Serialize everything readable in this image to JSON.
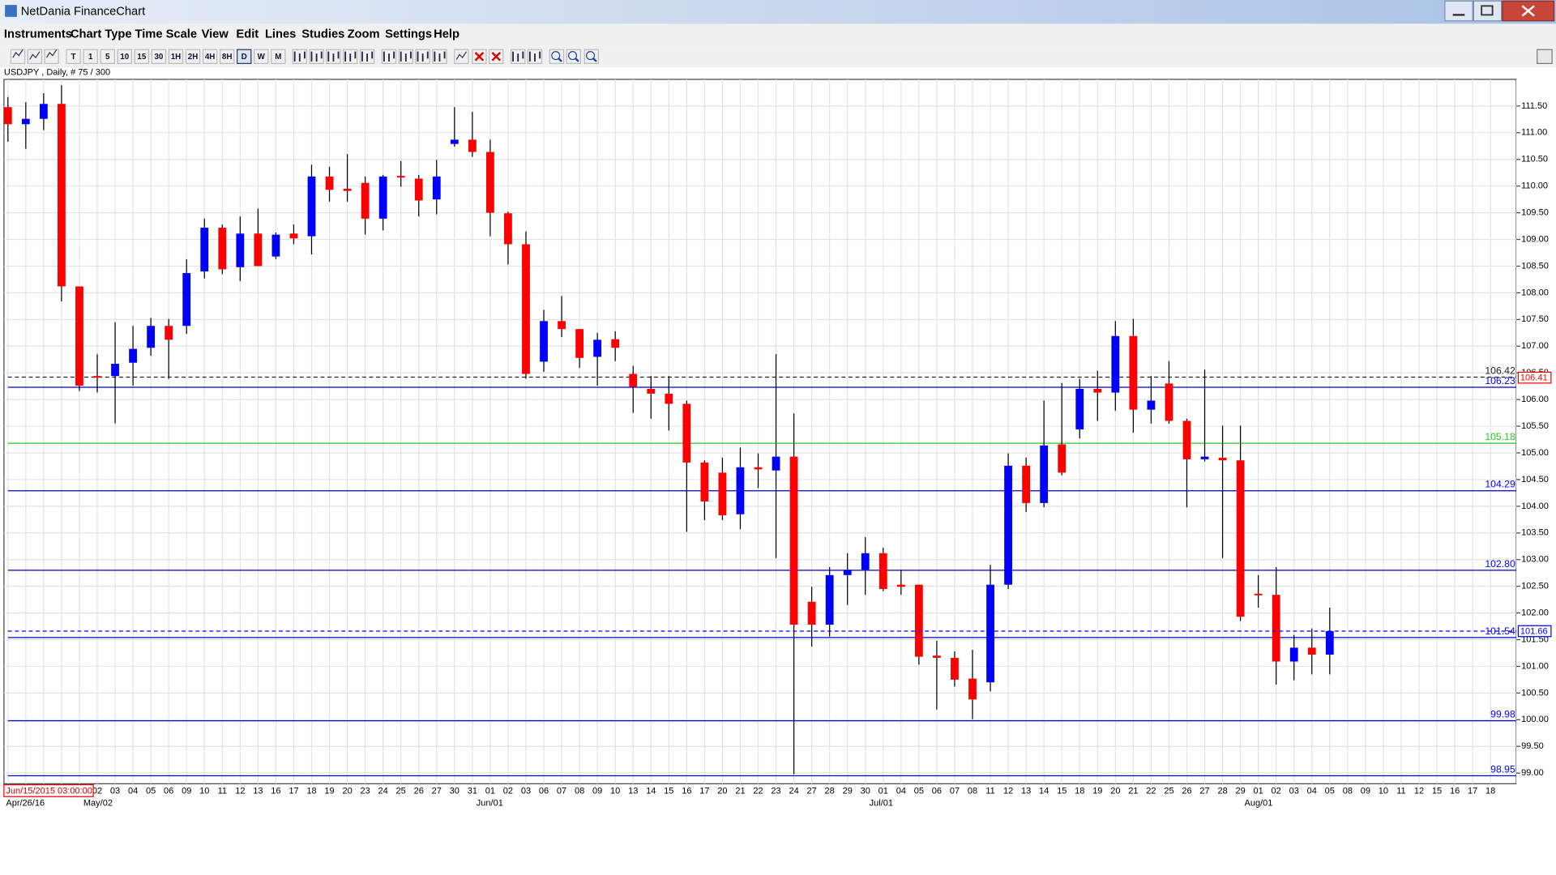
{
  "window": {
    "title": "NetDania FinanceChart"
  },
  "menu": [
    "Instruments",
    "Chart Type",
    "Time Scale",
    "View",
    "Edit",
    "Lines",
    "Studies",
    "Zoom",
    "Settings",
    "Help"
  ],
  "toolbar": {
    "timeframes": [
      "T",
      "1",
      "5",
      "10",
      "15",
      "30",
      "1H",
      "2H",
      "4H",
      "8H",
      "D",
      "W",
      "M"
    ]
  },
  "info": "USDJPY , Daily, # 75 / 300",
  "cursor_date": "Jun/15/2015 03:00:00",
  "chart_data": {
    "type": "candlestick",
    "categories": [
      null,
      null,
      null,
      null,
      null,
      "02",
      "03",
      "04",
      "05",
      "06",
      "09",
      "10",
      "11",
      "12",
      "13",
      "16",
      "17",
      "18",
      "19",
      "20",
      "23",
      "24",
      "25",
      "26",
      "27",
      "30",
      "31",
      "01",
      "02",
      "03",
      "06",
      "07",
      "08",
      "09",
      "10",
      "13",
      "14",
      "15",
      "16",
      "17",
      "20",
      "21",
      "22",
      "23",
      "24",
      "27",
      "28",
      "29",
      "30",
      "01",
      "04",
      "05",
      "06",
      "07",
      "08",
      "11",
      "12",
      "13",
      "14",
      "15",
      "18",
      "19",
      "20",
      "21",
      "22",
      "25",
      "26",
      "27",
      "28",
      "29",
      "01",
      "02",
      "03",
      "04",
      "05",
      "08",
      "09",
      "10",
      "11",
      "12",
      "15",
      "16",
      "17",
      "18"
    ],
    "period_labels": [
      "Apr/26/16",
      null,
      null,
      null,
      null,
      "May/02",
      null,
      null,
      null,
      null,
      null,
      null,
      null,
      null,
      null,
      null,
      null,
      null,
      null,
      null,
      null,
      null,
      null,
      null,
      null,
      null,
      null,
      "Jun/01",
      null,
      null,
      null,
      null,
      null,
      null,
      null,
      null,
      null,
      null,
      null,
      null,
      null,
      null,
      null,
      null,
      null,
      null,
      null,
      null,
      null,
      "Jul/01",
      null,
      null,
      null,
      null,
      null,
      null,
      null,
      null,
      null,
      null,
      null,
      null,
      null,
      null,
      null,
      null,
      null,
      null,
      null,
      null,
      "Aug/01",
      null,
      null,
      null,
      null,
      null,
      null,
      null,
      null,
      null,
      null,
      null,
      null,
      null
    ],
    "open": [
      111.48,
      111.16,
      111.26,
      111.54,
      108.12,
      106.44,
      106.44,
      106.69,
      106.97,
      107.38,
      107.38,
      108.4,
      109.22,
      108.48,
      109.11,
      108.68,
      109.11,
      109.06,
      110.18,
      109.95,
      110.06,
      109.39,
      110.19,
      110.14,
      109.75,
      110.79,
      110.87,
      110.64,
      109.49,
      108.91,
      106.71,
      107.47,
      107.32,
      106.8,
      107.13,
      106.48,
      106.2,
      106.11,
      105.92,
      104.82,
      104.63,
      103.85,
      104.73,
      104.67,
      104.93,
      102.21,
      101.78,
      102.71,
      102.81,
      103.12,
      102.53,
      102.53,
      101.2,
      101.16,
      100.77,
      100.7,
      102.53,
      104.76,
      104.06,
      105.16,
      105.44,
      106.2,
      106.13,
      107.19,
      105.81,
      106.3,
      105.6,
      104.88,
      104.91,
      104.86,
      102.36,
      102.34,
      101.09,
      101.35,
      101.22,
      null,
      null,
      null,
      null,
      null,
      null,
      null,
      null,
      null
    ],
    "close": [
      111.16,
      111.26,
      111.54,
      108.12,
      106.26,
      106.41,
      106.67,
      106.95,
      107.38,
      107.12,
      108.37,
      109.22,
      108.44,
      109.11,
      108.5,
      109.09,
      109.02,
      110.18,
      109.93,
      109.91,
      109.39,
      110.18,
      110.16,
      109.73,
      110.18,
      110.87,
      110.64,
      109.5,
      108.91,
      106.48,
      107.47,
      107.32,
      106.78,
      107.12,
      106.97,
      106.24,
      106.11,
      105.92,
      104.82,
      104.09,
      103.83,
      104.73,
      104.69,
      104.93,
      101.78,
      101.78,
      102.71,
      102.81,
      103.12,
      102.45,
      102.49,
      101.18,
      101.16,
      100.75,
      100.38,
      102.53,
      104.76,
      104.06,
      105.14,
      104.63,
      106.2,
      106.13,
      107.19,
      105.81,
      105.98,
      105.6,
      104.88,
      104.93,
      104.86,
      101.93,
      102.34,
      101.09,
      101.35,
      101.22,
      101.66,
      null,
      null,
      null,
      null,
      null,
      null,
      null,
      null,
      null
    ],
    "high": [
      111.67,
      111.57,
      111.74,
      111.89,
      108.12,
      106.85,
      107.45,
      107.38,
      107.53,
      107.51,
      108.63,
      109.39,
      109.28,
      109.43,
      109.58,
      109.13,
      109.28,
      110.4,
      110.36,
      110.6,
      110.18,
      110.21,
      110.47,
      110.21,
      110.49,
      111.48,
      111.39,
      110.87,
      109.52,
      109.15,
      107.68,
      107.94,
      107.32,
      107.25,
      107.28,
      106.63,
      106.44,
      106.44,
      105.98,
      104.86,
      104.91,
      105.1,
      104.99,
      106.85,
      105.74,
      102.49,
      102.86,
      103.12,
      103.42,
      103.22,
      102.81,
      102.53,
      101.48,
      101.28,
      101.31,
      102.9,
      104.99,
      104.91,
      105.98,
      106.31,
      106.39,
      106.54,
      107.47,
      107.51,
      106.44,
      106.72,
      105.64,
      106.56,
      105.51,
      105.51,
      102.71,
      102.86,
      101.59,
      101.71,
      102.1,
      null,
      null,
      null,
      null,
      null,
      null,
      null,
      null,
      null
    ],
    "low": [
      110.83,
      110.7,
      111.05,
      107.84,
      106.16,
      106.13,
      105.55,
      106.26,
      106.82,
      106.39,
      107.23,
      108.27,
      108.35,
      108.22,
      108.5,
      108.63,
      108.91,
      108.72,
      109.71,
      109.71,
      109.09,
      109.17,
      109.99,
      109.43,
      109.47,
      110.74,
      110.55,
      109.06,
      108.53,
      106.39,
      106.52,
      107.17,
      106.59,
      106.26,
      106.72,
      105.75,
      105.64,
      105.42,
      103.52,
      103.74,
      103.74,
      103.57,
      104.34,
      103.03,
      98.98,
      101.37,
      101.56,
      102.15,
      102.34,
      102.41,
      102.34,
      101.03,
      100.19,
      100.62,
      100.01,
      100.53,
      102.45,
      103.89,
      103.98,
      104.58,
      105.27,
      105.6,
      105.79,
      105.38,
      105.55,
      105.55,
      103.98,
      104.84,
      103.03,
      101.85,
      102.1,
      100.66,
      100.74,
      100.85,
      100.85,
      null,
      null,
      null,
      null,
      null,
      null,
      null,
      null,
      null
    ],
    "up_color": "#0000ff",
    "down_color": "#ff0000",
    "ylim": [
      98.8,
      112.0
    ],
    "yticks": [
      {
        "value": 99.0,
        "label": "99.00"
      },
      {
        "value": 99.5,
        "label": "99.50"
      },
      {
        "value": 100.0,
        "label": "100.00"
      },
      {
        "value": 100.5,
        "label": "100.50"
      },
      {
        "value": 101.0,
        "label": "101.00"
      },
      {
        "value": 101.5,
        "label": "101.50"
      },
      {
        "value": 102.0,
        "label": "102.00"
      },
      {
        "value": 102.5,
        "label": "102.50"
      },
      {
        "value": 103.0,
        "label": "103.00"
      },
      {
        "value": 103.5,
        "label": "103.50"
      },
      {
        "value": 104.0,
        "label": "104.00"
      },
      {
        "value": 104.5,
        "label": "104.50"
      },
      {
        "value": 105.0,
        "label": "105.00"
      },
      {
        "value": 105.5,
        "label": "105.50"
      },
      {
        "value": 106.0,
        "label": "106.00"
      },
      {
        "value": 106.5,
        "label": "106.50"
      },
      {
        "value": 107.0,
        "label": "107.00"
      },
      {
        "value": 107.5,
        "label": "107.50"
      },
      {
        "value": 108.0,
        "label": "108.00"
      },
      {
        "value": 108.5,
        "label": "108.50"
      },
      {
        "value": 109.0,
        "label": "109.00"
      },
      {
        "value": 109.5,
        "label": "109.50"
      },
      {
        "value": 110.0,
        "label": "110.00"
      },
      {
        "value": 110.5,
        "label": "110.50"
      },
      {
        "value": 111.0,
        "label": "111.00"
      },
      {
        "value": 111.5,
        "label": "111.50"
      }
    ],
    "grid": true,
    "levels": [
      {
        "value": 106.42,
        "label": "106.42",
        "color": "#222222",
        "style": "dashed"
      },
      {
        "value": 106.23,
        "label": "106.23",
        "color": "#0000cc",
        "style": "solid"
      },
      {
        "value": 105.18,
        "label": "105.18",
        "color": "#22cc22",
        "style": "solid"
      },
      {
        "value": 104.29,
        "label": "104.29",
        "color": "#0000cc",
        "style": "solid"
      },
      {
        "value": 102.8,
        "label": "102.80",
        "color": "#0000cc",
        "style": "solid"
      },
      {
        "value": 101.54,
        "label": "101.54",
        "color": "#0000cc",
        "style": "solid"
      },
      {
        "value": 99.98,
        "label": "99.98",
        "color": "#0000cc",
        "style": "solid"
      },
      {
        "value": 98.95,
        "label": "98.95",
        "color": "#0000cc",
        "style": "solid"
      }
    ],
    "price_tags": [
      {
        "value": 106.41,
        "label": "106.41",
        "color": "#ff0000",
        "dashed_line": false
      },
      {
        "value": 101.66,
        "label": "101.66",
        "color": "#0000ff",
        "dashed_line": true
      }
    ]
  }
}
